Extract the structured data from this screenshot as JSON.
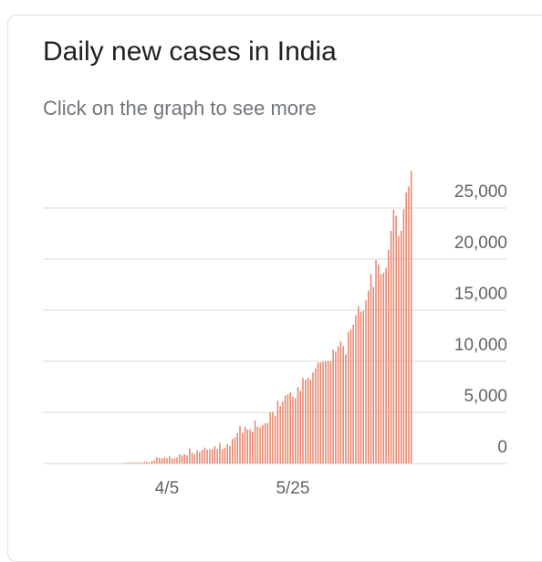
{
  "chart_data": {
    "type": "bar",
    "title": "Daily new cases in India",
    "subtitle": "Click on the graph to see more",
    "categories": [
      null,
      null,
      null,
      null,
      null,
      null,
      null,
      null,
      null,
      null,
      null,
      null,
      null,
      null,
      null,
      null,
      null,
      null,
      null,
      null,
      null,
      "4/5",
      null,
      null,
      null,
      null,
      null,
      null,
      null,
      null,
      null,
      null,
      null,
      null,
      null,
      null,
      null,
      null,
      null,
      null,
      null,
      null,
      null,
      null,
      null,
      null,
      null,
      null,
      null,
      null,
      null,
      null,
      null,
      null,
      null,
      null,
      null,
      null,
      null,
      null,
      null,
      null,
      null,
      null,
      null,
      null,
      null,
      null,
      null,
      null,
      null,
      "5/25",
      null,
      null,
      null,
      null,
      null,
      null,
      null,
      null,
      null,
      null,
      null,
      null,
      null,
      null,
      null,
      null,
      null,
      null,
      null,
      null,
      null,
      null,
      null,
      null,
      null,
      null,
      null,
      null,
      null,
      null,
      null,
      null,
      null,
      null,
      null,
      null,
      null,
      null,
      null,
      null,
      null,
      null,
      null,
      null,
      null,
      null,
      null
    ],
    "values": [
      10,
      16,
      11,
      14,
      22,
      57,
      72,
      72,
      102,
      70,
      87,
      88,
      160,
      155,
      106,
      227,
      300,
      601,
      545,
      478,
      601,
      505,
      704,
      508,
      485,
      591,
      896,
      768,
      918,
      796,
      1463,
      1076,
      920,
      1296,
      1140,
      1334,
      1553,
      1336,
      1383,
      1409,
      1684,
      1429,
      1990,
      1396,
      1543,
      1897,
      1718,
      2396,
      2564,
      2952,
      3656,
      2971,
      3602,
      3344,
      3344,
      3113,
      4213,
      3607,
      3524,
      3763,
      3942,
      3967,
      4987,
      5050,
      4628,
      6147,
      5611,
      6088,
      6654,
      6767,
      6977,
      6535,
      6387,
      7466,
      7113,
      8380,
      8171,
      8392,
      8171,
      8909,
      9304,
      9851,
      9887,
      9971,
      9983,
      9985,
      9987,
      11156,
      10956,
      11458,
      11929,
      11502,
      10667,
      12881,
      13103,
      13586,
      14516,
      15413,
      14821,
      14933,
      15968,
      16922,
      18552,
      17296,
      19906,
      19459,
      18522,
      18653,
      19148,
      20903,
      22771,
      24850,
      24248,
      22252,
      22752,
      24879,
      26506,
      27114,
      28637
    ],
    "color": "#e8836a",
    "ylim": [
      0,
      30000
    ],
    "yticks": [
      0,
      {
        "value": 5000,
        "label": "5,000"
      },
      {
        "value": 10000,
        "label": "10,000"
      },
      {
        "value": 15000,
        "label": "15,000"
      },
      {
        "value": 20000,
        "label": "20,000"
      },
      {
        "value": 25000,
        "label": "25,000"
      }
    ],
    "grid": true
  }
}
